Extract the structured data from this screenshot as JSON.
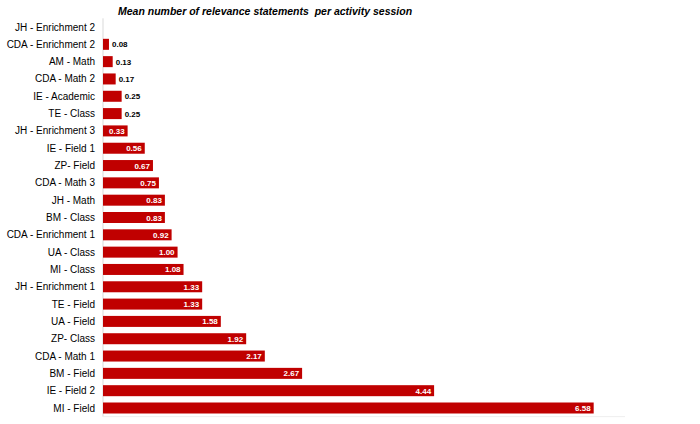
{
  "chart_data": {
    "type": "bar",
    "title": "Mean number of relevance statements  per activity session",
    "orientation": "horizontal",
    "categories": [
      "JH - Enrichment 2",
      "CDA - Enrichment 2",
      "AM - Math",
      "CDA - Math 2",
      "IE - Academic",
      "TE - Class",
      "JH - Enrichment 3",
      "IE - Field 1",
      "ZP- Field",
      "CDA - Math 3",
      "JH - Math",
      "BM - Class",
      "CDA - Enrichment 1",
      "UA - Class",
      "MI - Class",
      "JH - Enrichment 1",
      "TE - Field",
      "UA - Field",
      "ZP- Class",
      "CDA - Math 1",
      "BM - Field",
      "IE - Field 2",
      "MI - Field"
    ],
    "values": [
      0,
      0.08,
      0.13,
      0.17,
      0.25,
      0.25,
      0.33,
      0.56,
      0.67,
      0.75,
      0.83,
      0.83,
      0.92,
      1.0,
      1.08,
      1.33,
      1.33,
      1.58,
      1.92,
      2.17,
      2.67,
      4.44,
      6.58
    ],
    "value_labels": [
      null,
      "0.08",
      "0.13",
      "0.17",
      "0.25",
      "0.25",
      "0.33",
      "0.56",
      "0.67",
      "0.75",
      "0.83",
      "0.83",
      "0.92",
      "1.00",
      "1.08",
      "1.33",
      "1.33",
      "1.58",
      "1.92",
      "2.17",
      "2.67",
      "4.44",
      "6.58"
    ],
    "color": "#c00000",
    "xlim": [
      0,
      7
    ],
    "data_labels": true,
    "tick_labels": false,
    "grid": false
  }
}
